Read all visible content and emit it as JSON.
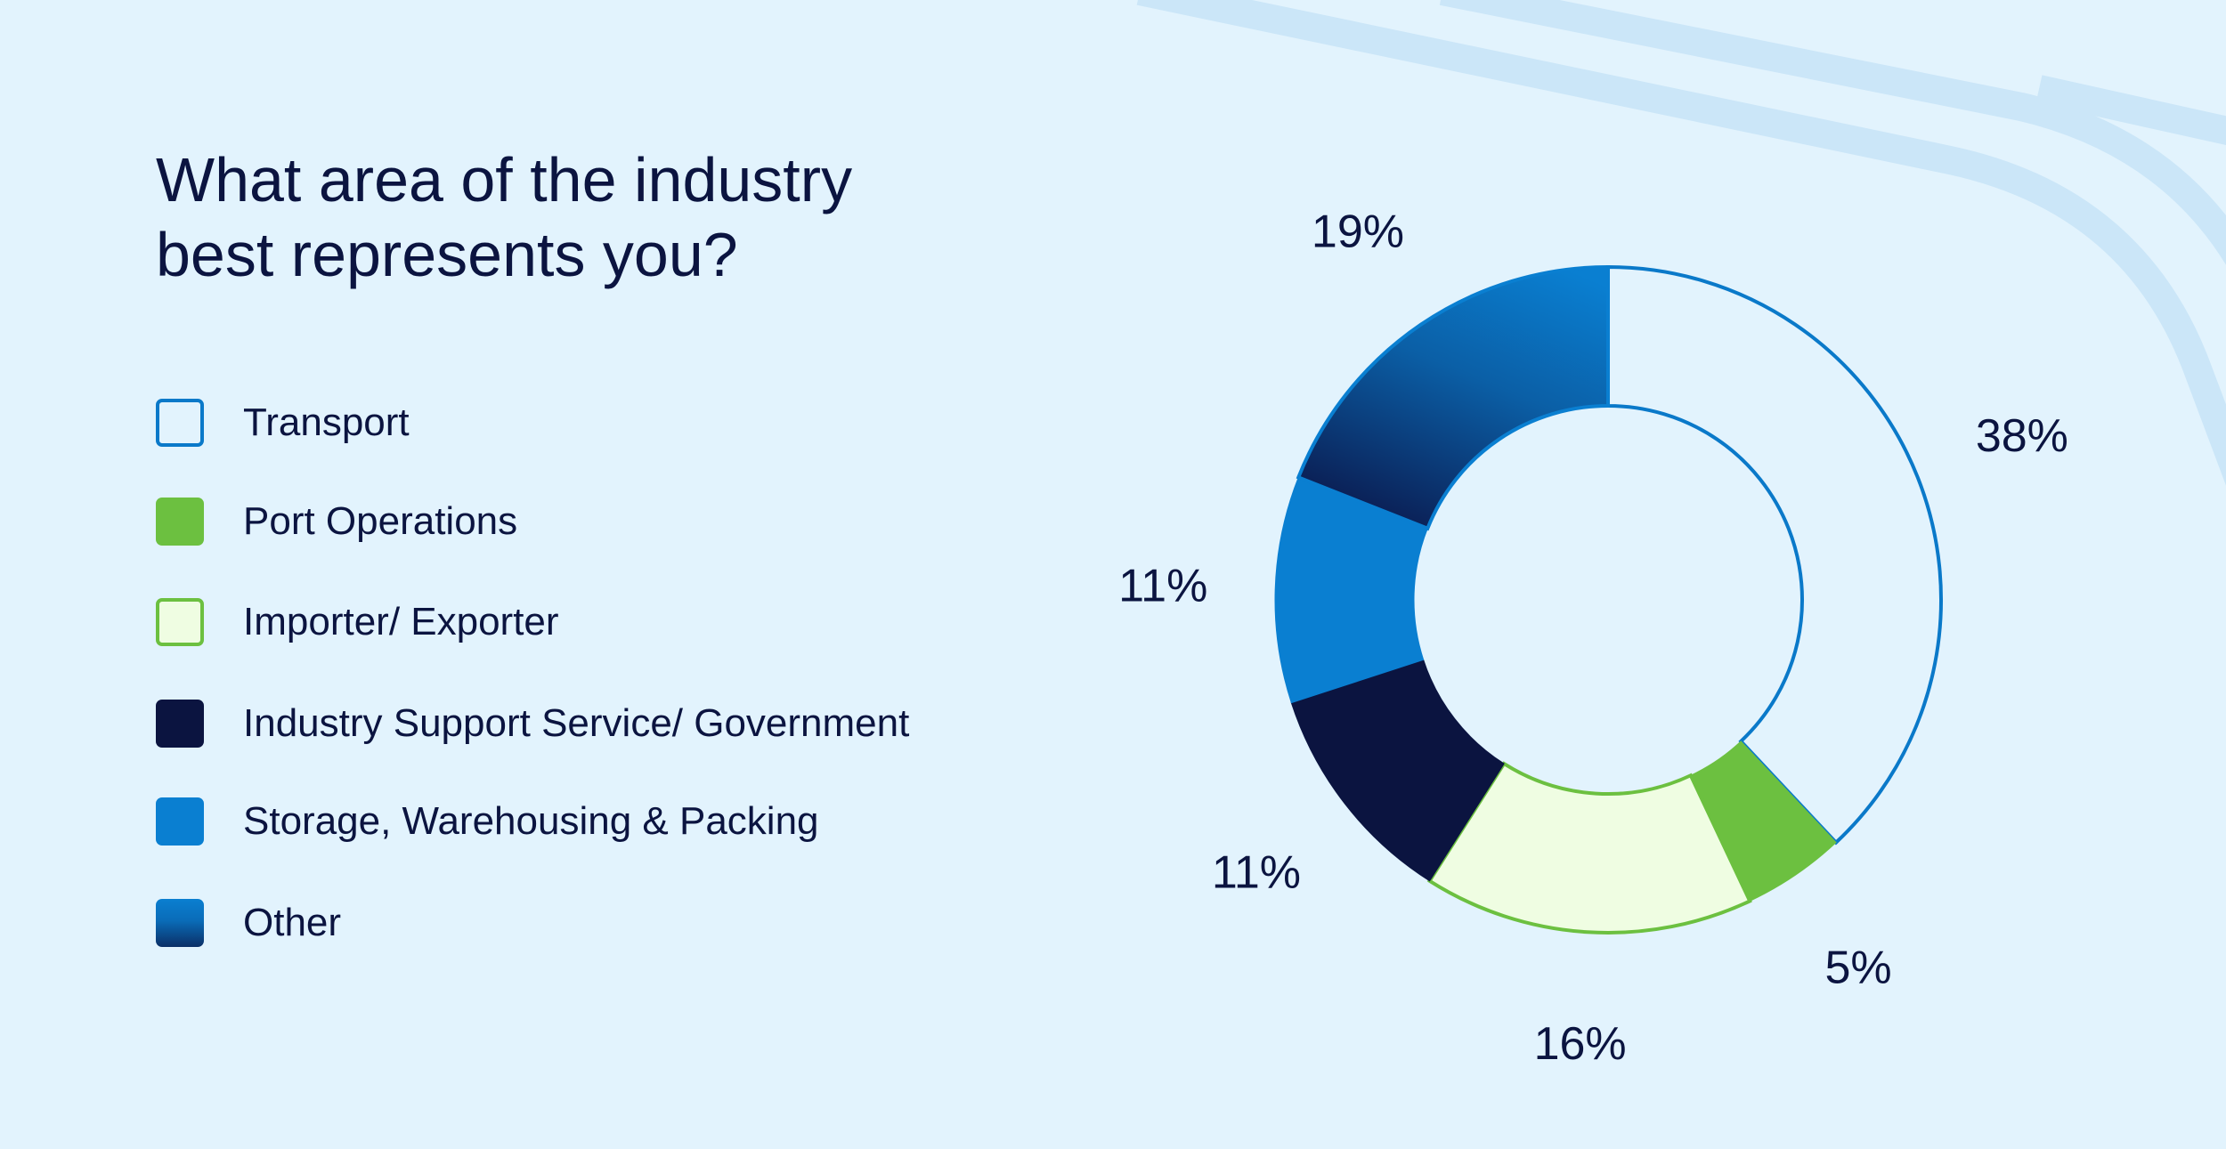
{
  "colors": {
    "background": "#e2f3fd",
    "bg_lines": "#cbe6f8",
    "text": "#0b1440"
  },
  "chart_data": {
    "type": "pie",
    "donut": true,
    "title_lines": [
      "What area of the industry",
      "best represents you?"
    ],
    "legend_placement": "left",
    "start_angle_deg": 0,
    "direction": "clockwise",
    "series": [
      {
        "name": "Transport",
        "value": 38,
        "label": "38%",
        "fill": "#e2f3fd",
        "stroke": "#0a79c9",
        "swatch": "outline-blue"
      },
      {
        "name": "Port Operations",
        "value": 5,
        "label": "5%",
        "fill": "#6cc040",
        "stroke": "#6cc040",
        "swatch": "solid-green"
      },
      {
        "name": "Importer/ Exporter",
        "value": 16,
        "label": "16%",
        "fill": "#effde2",
        "stroke": "#6cc040",
        "swatch": "outline-green"
      },
      {
        "name": "Industry Support Service/ Government",
        "value": 11,
        "label": "11%",
        "fill": "#0b1440",
        "stroke": "#0b1440",
        "swatch": "solid-navy"
      },
      {
        "name": "Storage, Warehousing & Packing",
        "value": 11,
        "label": "11%",
        "fill": "#0a7fd1",
        "stroke": "#0a7fd1",
        "swatch": "solid-blue"
      },
      {
        "name": "Other",
        "value": 19,
        "label": "19%",
        "fill": "gradient",
        "stroke": "#0a7fd1",
        "swatch": "gradient-blue"
      }
    ]
  }
}
